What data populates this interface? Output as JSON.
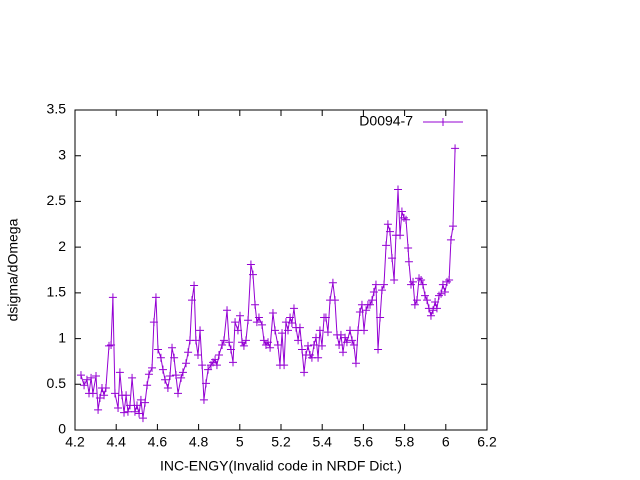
{
  "chart_data": {
    "type": "line",
    "xlabel": "INC-ENGY(Invalid code in NRDF Dict.)",
    "ylabel": "dsigma/dOmega",
    "xlim": [
      4.2,
      6.2
    ],
    "xticks": [
      4.2,
      4.4,
      4.6,
      4.8,
      5,
      5.2,
      5.4,
      5.6,
      5.8,
      6,
      6.2
    ],
    "ylim": [
      0,
      3.5
    ],
    "yticks": [
      0,
      0.5,
      1,
      1.5,
      2,
      2.5,
      3,
      3.5
    ],
    "legend": "top-right",
    "series": [
      {
        "name": "D0094-7",
        "color": "#9400d3",
        "x": [
          4.229,
          4.244,
          4.258,
          4.268,
          4.278,
          4.287,
          4.302,
          4.312,
          4.321,
          4.331,
          4.341,
          4.35,
          4.365,
          4.375,
          4.384,
          4.394,
          4.409,
          4.418,
          4.428,
          4.438,
          4.448,
          4.457,
          4.467,
          4.477,
          4.491,
          4.501,
          4.511,
          4.52,
          4.53,
          4.54,
          4.55,
          4.559,
          4.574,
          4.583,
          4.593,
          4.603,
          4.617,
          4.627,
          4.637,
          4.651,
          4.661,
          4.671,
          4.681,
          4.69,
          4.7,
          4.715,
          4.724,
          4.739,
          4.749,
          4.758,
          4.768,
          4.778,
          4.787,
          4.797,
          4.807,
          4.817,
          4.826,
          4.836,
          4.846,
          4.86,
          4.87,
          4.88,
          4.889,
          4.899,
          4.914,
          4.923,
          4.938,
          4.948,
          4.957,
          4.967,
          4.977,
          4.991,
          5.001,
          5.011,
          5.02,
          5.03,
          5.04,
          5.054,
          5.064,
          5.074,
          5.083,
          5.093,
          5.108,
          5.117,
          5.127,
          5.137,
          5.147,
          5.161,
          5.171,
          5.185,
          5.195,
          5.205,
          5.215,
          5.224,
          5.234,
          5.244,
          5.253,
          5.263,
          5.273,
          5.283,
          5.292,
          5.302,
          5.312,
          5.321,
          5.331,
          5.341,
          5.35,
          5.36,
          5.37,
          5.38,
          5.389,
          5.399,
          5.409,
          5.418,
          5.428,
          5.438,
          5.452,
          5.462,
          5.472,
          5.482,
          5.491,
          5.501,
          5.511,
          5.52,
          5.535,
          5.545,
          5.554,
          5.564,
          5.574,
          5.583,
          5.593,
          5.603,
          5.613,
          5.622,
          5.632,
          5.642,
          5.651,
          5.661,
          5.671,
          5.681,
          5.69,
          5.7,
          5.71,
          5.719,
          5.729,
          5.739,
          5.749,
          5.758,
          5.768,
          5.778,
          5.787,
          5.797,
          5.807,
          5.817,
          5.821,
          5.831,
          5.841,
          5.85,
          5.86,
          5.87,
          5.88,
          5.889,
          5.899,
          5.909,
          5.918,
          5.928,
          5.938,
          5.948,
          5.957,
          5.967,
          5.977,
          5.986,
          5.996,
          6.006,
          6.016,
          6.025,
          6.035,
          6.045
        ],
        "values": [
          0.6,
          0.49,
          0.55,
          0.4,
          0.57,
          0.4,
          0.59,
          0.22,
          0.35,
          0.46,
          0.38,
          0.46,
          0.92,
          0.93,
          1.45,
          0.4,
          0.24,
          0.63,
          0.38,
          0.19,
          0.38,
          0.2,
          0.27,
          0.57,
          0.2,
          0.27,
          0.18,
          0.33,
          0.13,
          0.3,
          0.49,
          0.61,
          0.68,
          1.18,
          1.45,
          0.88,
          0.79,
          0.66,
          0.55,
          0.46,
          0.59,
          0.9,
          0.79,
          0.6,
          0.4,
          0.57,
          0.63,
          0.73,
          0.85,
          0.98,
          1.42,
          1.58,
          0.98,
          0.82,
          1.09,
          0.71,
          0.33,
          0.51,
          0.66,
          0.71,
          0.74,
          0.77,
          0.71,
          0.82,
          0.93,
          0.98,
          1.31,
          0.96,
          0.88,
          0.74,
          1.18,
          1.09,
          1.25,
          0.96,
          0.92,
          0.98,
          1.2,
          1.81,
          1.7,
          1.37,
          1.18,
          1.23,
          1.15,
          0.98,
          0.93,
          0.96,
          0.9,
          1.28,
          1.09,
          0.93,
          0.71,
          1.06,
          0.71,
          1.18,
          1.09,
          1.23,
          1.17,
          1.33,
          1.12,
          0.98,
          1.12,
          0.88,
          0.63,
          0.82,
          0.92,
          0.82,
          0.79,
          0.93,
          1.01,
          0.79,
          1.09,
          0.92,
          1.23,
          1.23,
          1.07,
          1.42,
          1.61,
          1.42,
          1.04,
          0.93,
          1.04,
          0.85,
          1.01,
          0.96,
          1.09,
          0.98,
          0.93,
          0.73,
          1.09,
          1.29,
          1.37,
          1.09,
          1.31,
          1.37,
          1.37,
          1.42,
          1.51,
          1.59,
          0.88,
          1.23,
          1.53,
          1.59,
          2.02,
          2.25,
          2.17,
          1.88,
          1.64,
          2.13,
          2.63,
          2.13,
          2.39,
          2.32,
          2.3,
          1.99,
          1.84,
          1.59,
          1.62,
          1.37,
          1.42,
          1.66,
          1.64,
          1.59,
          1.47,
          1.42,
          1.33,
          1.25,
          1.31,
          1.4,
          1.33,
          1.47,
          1.49,
          1.59,
          1.51,
          1.62,
          1.64,
          2.08,
          2.23,
          3.08
        ]
      }
    ]
  }
}
